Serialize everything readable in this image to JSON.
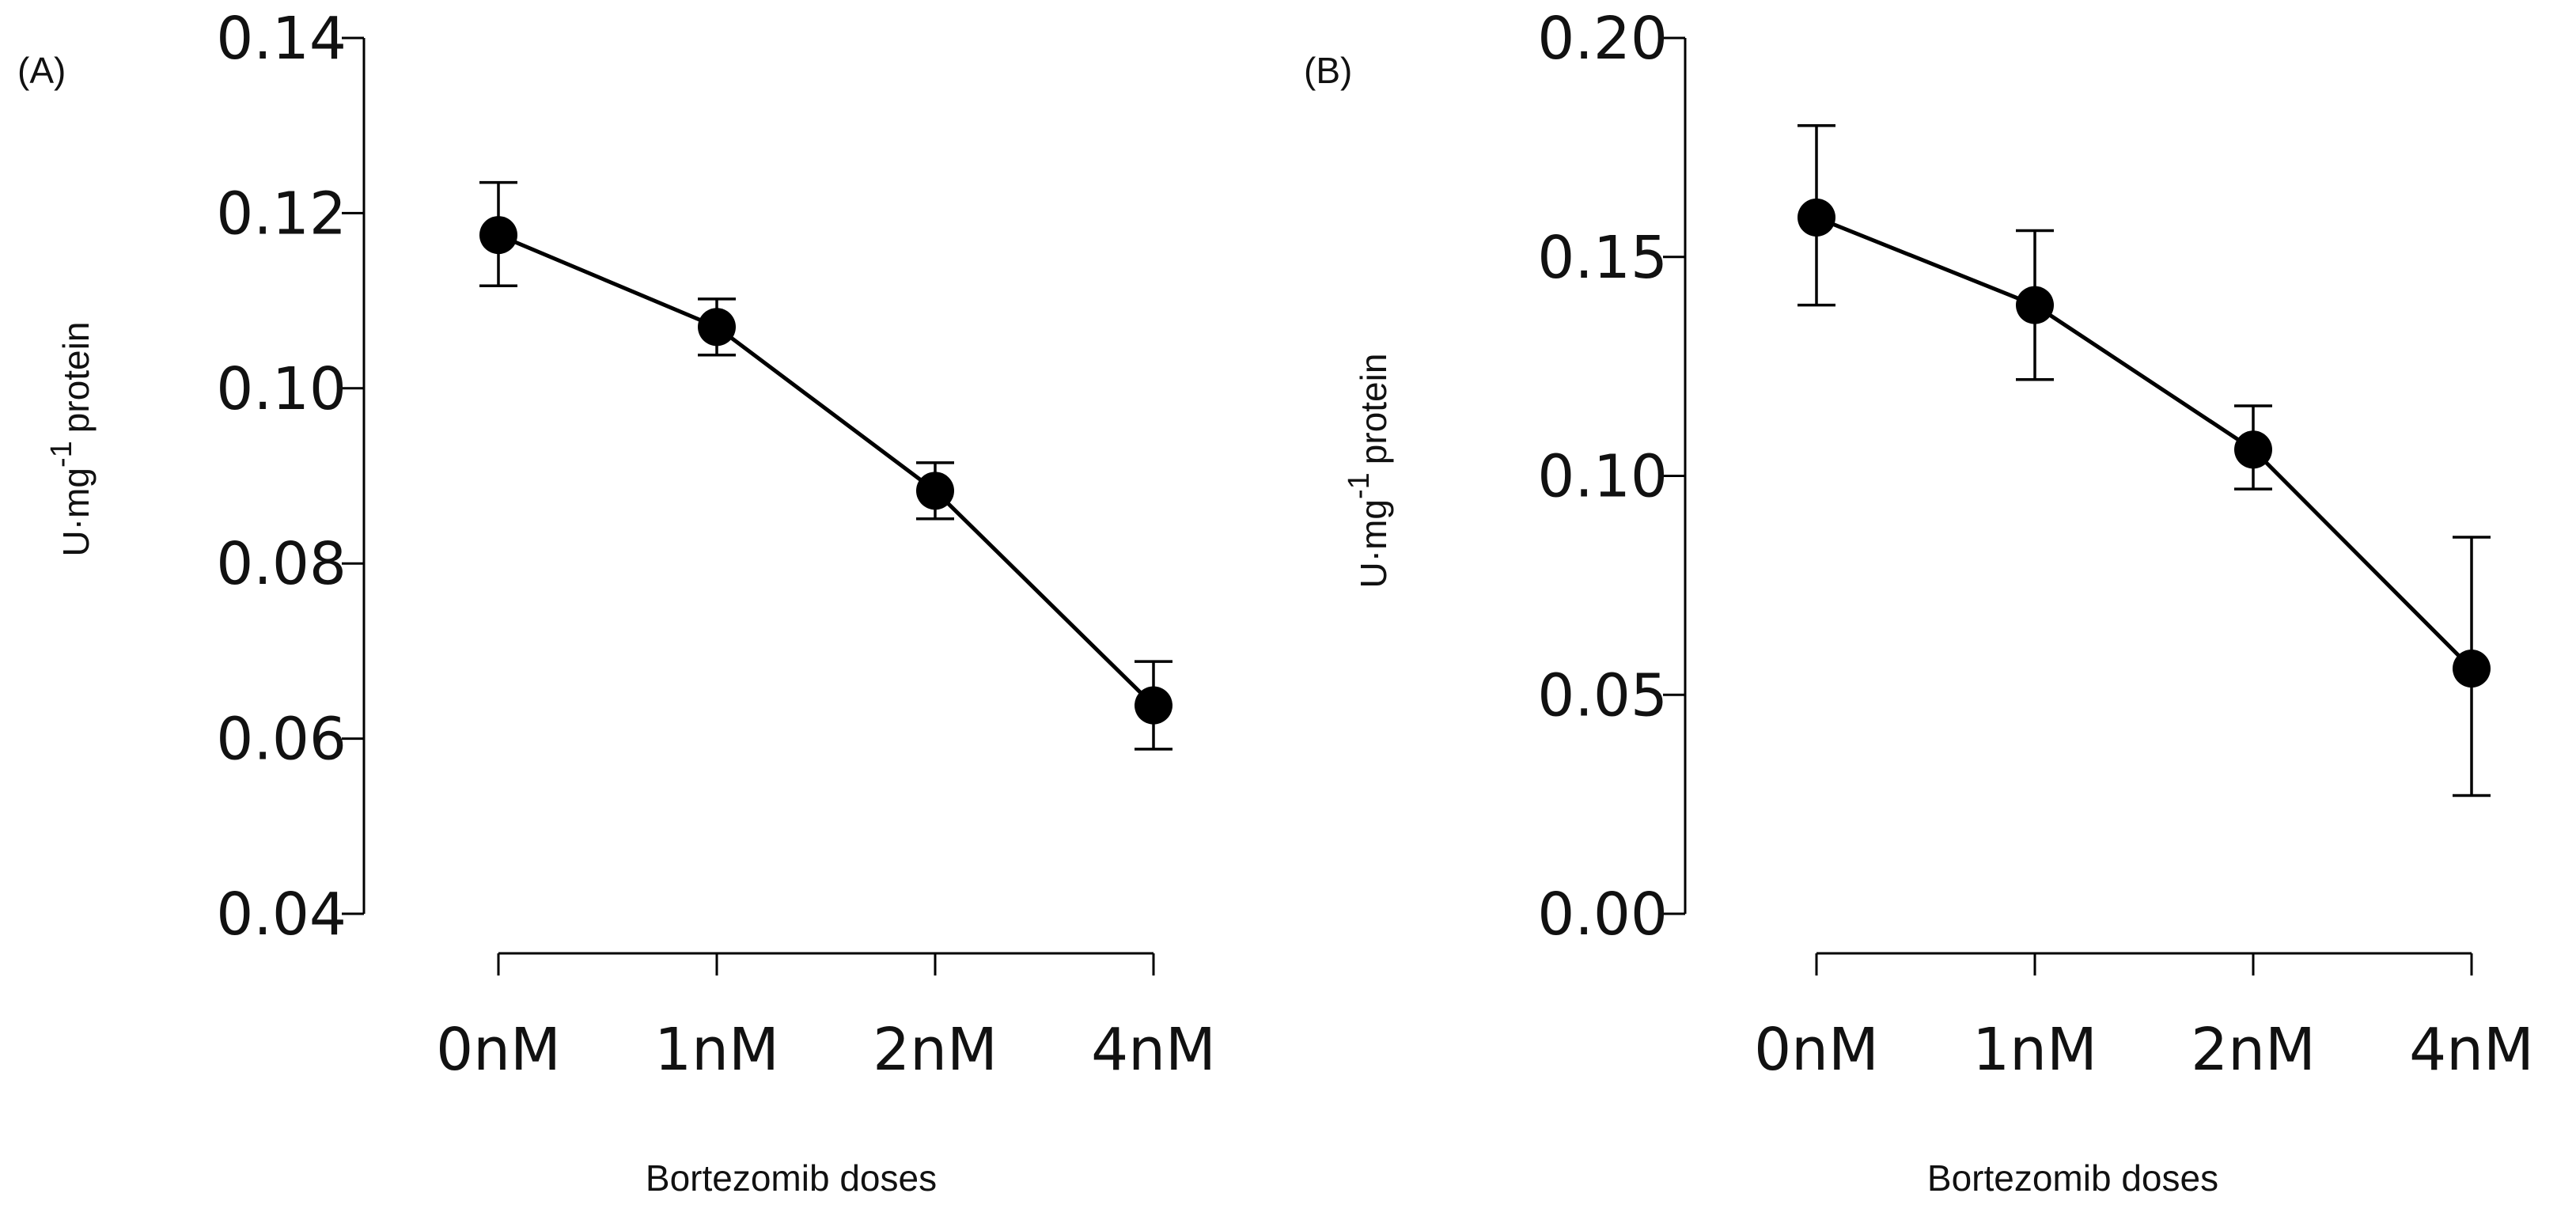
{
  "chart_data": [
    {
      "type": "line",
      "panel_label": "(A)",
      "categories": [
        "0nM",
        "1nM",
        "2nM",
        "4nM"
      ],
      "values": [
        0.1175,
        0.107,
        0.0883,
        0.0638
      ],
      "error_high": [
        0.1235,
        0.1102,
        0.0915,
        0.0688
      ],
      "error_low": [
        0.1117,
        0.1038,
        0.0851,
        0.0588
      ],
      "ylim": [
        0.04,
        0.14
      ],
      "yticks": [
        0.04,
        0.06,
        0.08,
        0.1,
        0.12,
        0.14
      ],
      "ytick_labels": [
        "0.04",
        "0.06",
        "0.08",
        "0.10",
        "0.12",
        "0.14"
      ],
      "ylabel": "U·mg-1 protein",
      "ylabel_parts": {
        "base": "U·mg",
        "sup": "-1",
        "rest": "protein"
      },
      "xlabel": "Bortezomib doses",
      "grid": false,
      "color": "#000000"
    },
    {
      "type": "line",
      "panel_label": "(B)",
      "categories": [
        "0nM",
        "1nM",
        "2nM",
        "4nM"
      ],
      "values": [
        0.159,
        0.139,
        0.106,
        0.056
      ],
      "error_high": [
        0.18,
        0.156,
        0.116,
        0.086
      ],
      "error_low": [
        0.139,
        0.122,
        0.097,
        0.027
      ],
      "ylim": [
        0.0,
        0.2
      ],
      "yticks": [
        0.0,
        0.05,
        0.1,
        0.15,
        0.2
      ],
      "ytick_labels": [
        "0.00",
        "0.05",
        "0.10",
        "0.15",
        "0.20"
      ],
      "ylabel": "U·mg-1 protein",
      "ylabel_parts": {
        "base": "U·mg",
        "sup": "-1",
        "rest": "protein"
      },
      "xlabel": "Bortezomib doses",
      "grid": false,
      "color": "#000000"
    }
  ]
}
